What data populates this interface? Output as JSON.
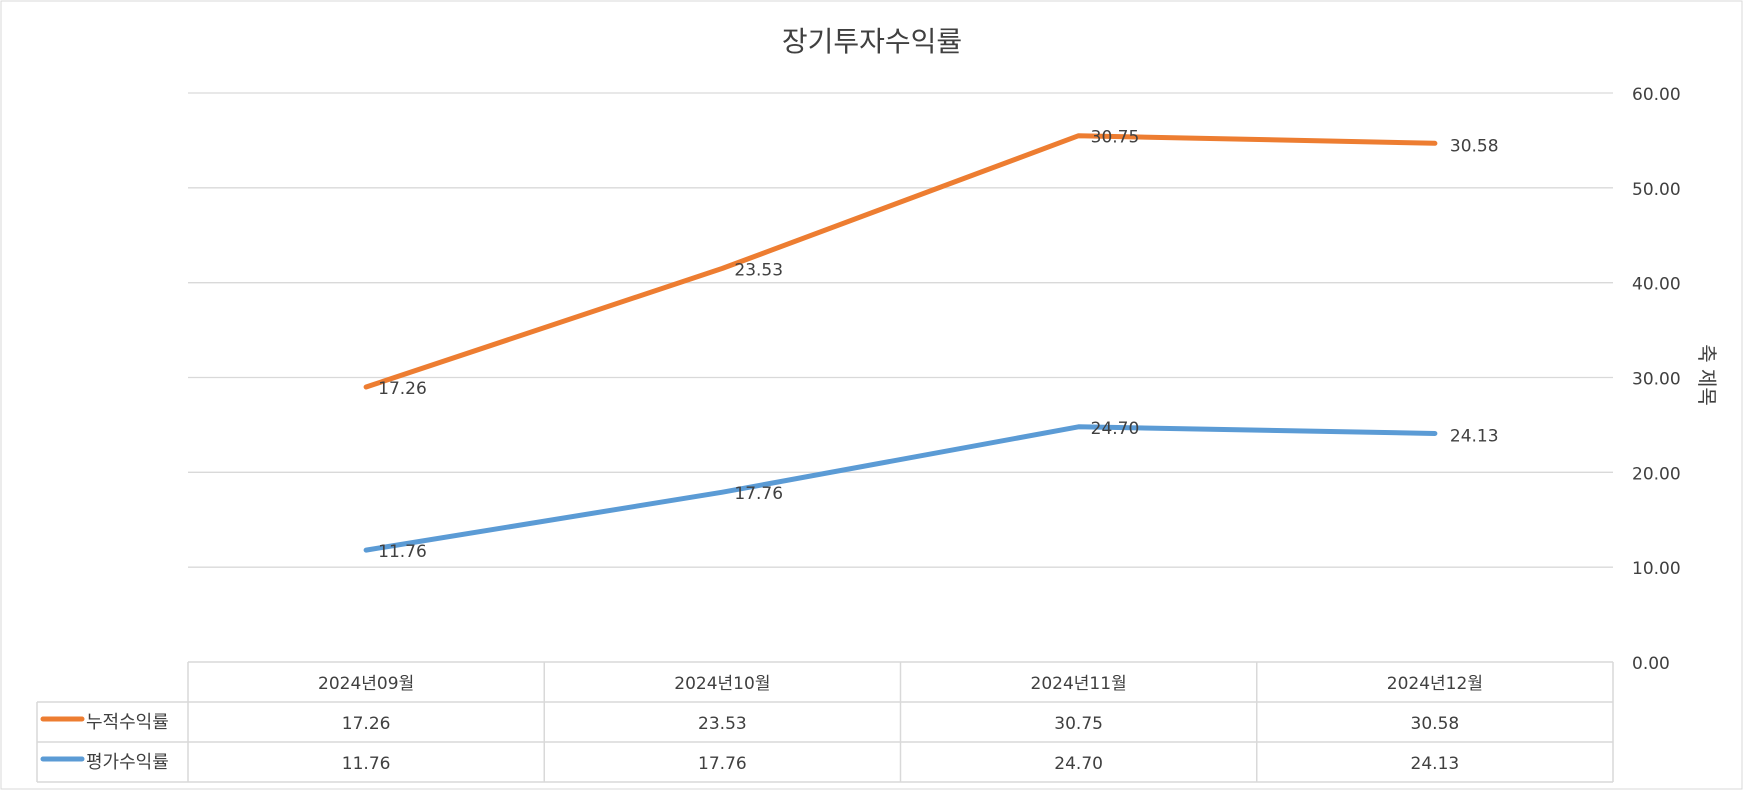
{
  "chart_data": {
    "type": "line",
    "title": "장기투자수익률",
    "ylabel": "축 제목",
    "ylim": [
      0,
      60
    ],
    "yticks": [
      "0.00",
      "10.00",
      "20.00",
      "30.00",
      "40.00",
      "50.00",
      "60.00"
    ],
    "y_axis_position": "right",
    "grid": true,
    "legend": "data-table",
    "categories": [
      "2024년09월",
      "2024년10월",
      "2024년11월",
      "2024년12월"
    ],
    "series": [
      {
        "name": "누적수익률",
        "color": "#ED7D31",
        "plot_values": [
          29.0,
          41.5,
          55.5,
          54.7
        ],
        "values": [
          17.26,
          23.53,
          30.75,
          30.58
        ],
        "labels": [
          "17.26",
          "23.53",
          "30.75",
          "30.58"
        ]
      },
      {
        "name": "평가수익률",
        "color": "#5B9BD5",
        "plot_values": [
          11.8,
          17.9,
          24.8,
          24.1
        ],
        "values": [
          11.76,
          17.76,
          24.7,
          24.13
        ],
        "labels": [
          "11.76",
          "17.76",
          "24.70",
          "24.13"
        ]
      }
    ]
  }
}
